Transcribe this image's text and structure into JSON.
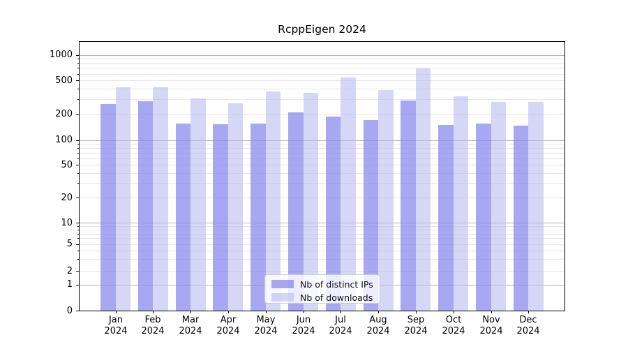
{
  "title": "RcppEigen 2024",
  "chart_data": {
    "type": "bar",
    "title": "RcppEigen 2024",
    "categories": [
      "Jan",
      "Feb",
      "Mar",
      "Apr",
      "May",
      "Jun",
      "Jul",
      "Aug",
      "Sep",
      "Oct",
      "Nov",
      "Dec"
    ],
    "x_year_label": "2024",
    "series": [
      {
        "name": "Nb of distinct IPs",
        "color": "#a8a8f0",
        "values": [
          265,
          285,
          156,
          152,
          155,
          211,
          190,
          173,
          292,
          151,
          157,
          148
        ]
      },
      {
        "name": "Nb of downloads",
        "color": "#d9d9f8",
        "values": [
          417,
          417,
          309,
          270,
          372,
          355,
          539,
          387,
          695,
          324,
          281,
          281
        ]
      }
    ],
    "y_ticks": [
      0,
      1,
      2,
      5,
      10,
      20,
      50,
      100,
      200,
      500,
      1000
    ],
    "ylim": [
      0,
      1400
    ],
    "yscale": "symlog",
    "grid": true,
    "legend_position": "bottom-center"
  }
}
